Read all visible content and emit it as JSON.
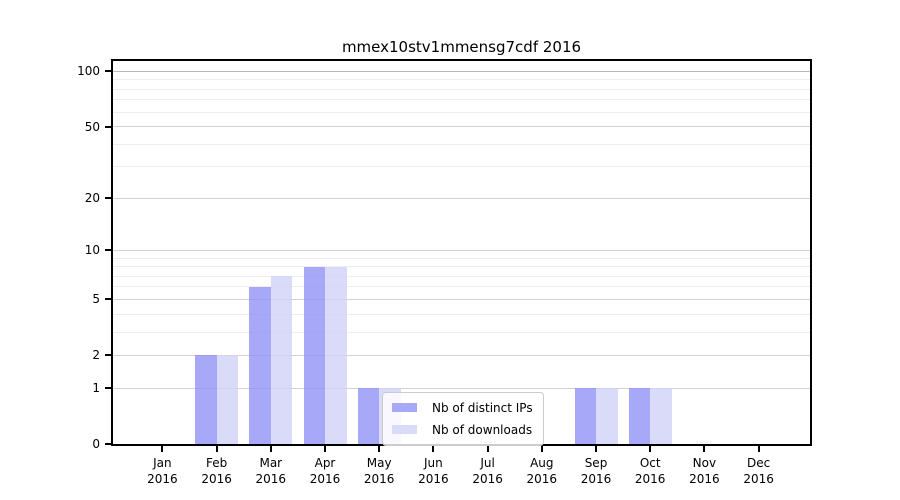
{
  "title": "mmex10stv1mmensg7cdf 2016",
  "chart_data": {
    "type": "bar",
    "title": "mmex10stv1mmensg7cdf 2016",
    "categories": [
      "Jan",
      "Feb",
      "Mar",
      "Apr",
      "May",
      "Jun",
      "Jul",
      "Aug",
      "Sep",
      "Oct",
      "Nov",
      "Dec"
    ],
    "x_sub_label": "2016",
    "series": [
      {
        "name": "Nb of distinct IPs",
        "color": "#a8a8f8",
        "fill": "rgba(146,146,246,0.8)",
        "values": [
          0,
          2,
          6,
          8,
          1,
          0,
          0,
          0,
          1,
          1,
          0,
          0
        ]
      },
      {
        "name": "Nb of downloads",
        "color": "#dadaf9",
        "fill": "rgba(209,209,248,0.8)",
        "values": [
          0,
          2,
          7,
          8,
          1,
          0,
          0,
          0,
          1,
          1,
          0,
          0
        ]
      }
    ],
    "yscale": "log1p",
    "ylim": [
      0,
      114
    ],
    "y_major_ticks": [
      0,
      1,
      2,
      5,
      10,
      20,
      50,
      100
    ],
    "y_minor_ticks": [
      3,
      4,
      6,
      7,
      8,
      9,
      30,
      40,
      60,
      70,
      80,
      90
    ],
    "grid": true,
    "legend_position": "lower-center",
    "legend_entries": [
      "Nb of distinct IPs",
      "Nb of downloads"
    ]
  }
}
